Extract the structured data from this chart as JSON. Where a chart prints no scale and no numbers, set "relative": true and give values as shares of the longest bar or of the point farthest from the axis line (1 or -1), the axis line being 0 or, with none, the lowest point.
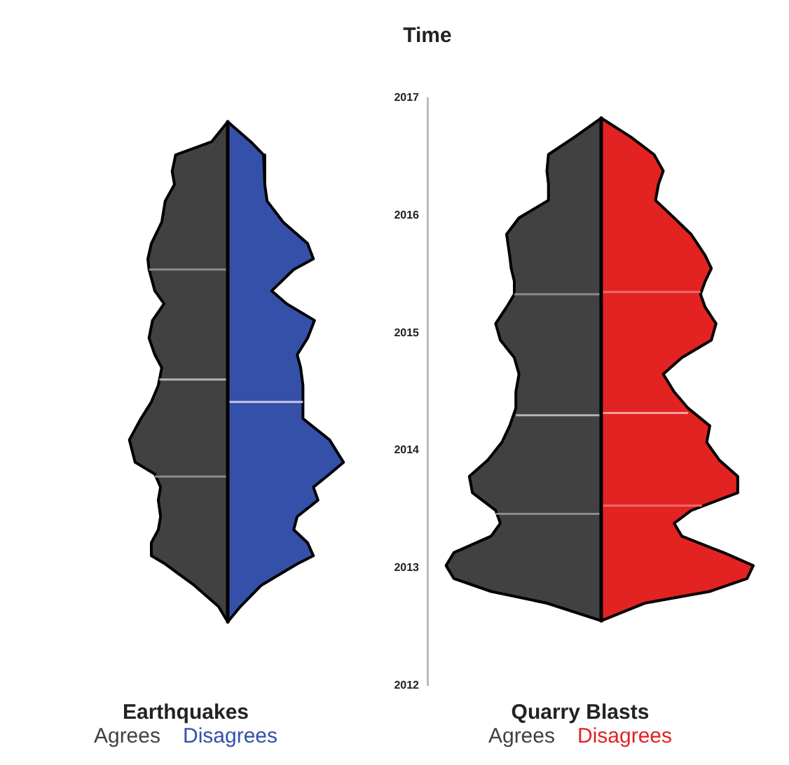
{
  "chart_data": [
    {
      "type": "area",
      "orientation": "horizontal",
      "relative": true,
      "xlabel": "Earthquakes",
      "legend": "bottom",
      "tick_labels": false,
      "ylim": [
        2012,
        2017
      ],
      "yticks": [
        2012,
        2013,
        2014,
        2015,
        2016,
        2017
      ],
      "series": [
        {
          "name": "Agrees",
          "color": "#414141",
          "x": [
            2016.8,
            2016.63,
            2016.52,
            2016.38,
            2016.27,
            2016.13,
            2015.95,
            2015.77,
            2015.64,
            2015.55,
            2015.37,
            2015.26,
            2015.12,
            2014.97,
            2014.83,
            2014.72,
            2014.57,
            2014.43,
            2014.29,
            2014.11,
            2013.92,
            2013.82,
            2013.71,
            2013.6,
            2013.46,
            2013.35,
            2013.24,
            2013.13,
            2013.06,
            2012.88,
            2012.7,
            2012.57
          ],
          "values": [
            0,
            -0.14,
            -0.45,
            -0.48,
            -0.46,
            -0.54,
            -0.57,
            -0.66,
            -0.69,
            -0.68,
            -0.63,
            -0.55,
            -0.65,
            -0.68,
            -0.63,
            -0.57,
            -0.6,
            -0.66,
            -0.75,
            -0.85,
            -0.8,
            -0.63,
            -0.58,
            -0.6,
            -0.58,
            -0.6,
            -0.66,
            -0.66,
            -0.54,
            -0.29,
            -0.08,
            0
          ]
        },
        {
          "name": "Disagrees",
          "color": "#3550a8",
          "x": [
            2016.8,
            2016.63,
            2016.52,
            2016.38,
            2016.27,
            2016.13,
            2015.95,
            2015.77,
            2015.64,
            2015.55,
            2015.37,
            2015.26,
            2015.12,
            2014.97,
            2014.83,
            2014.72,
            2014.57,
            2014.43,
            2014.29,
            2014.11,
            2013.92,
            2013.82,
            2013.71,
            2013.6,
            2013.46,
            2013.35,
            2013.24,
            2013.13,
            2013.06,
            2012.88,
            2012.7,
            2012.57
          ],
          "values": [
            0,
            0.2,
            0.31,
            0.32,
            0.32,
            0.34,
            0.48,
            0.69,
            0.74,
            0.57,
            0.38,
            0.51,
            0.75,
            0.69,
            0.6,
            0.63,
            0.65,
            0.65,
            0.65,
            0.88,
            1,
            0.88,
            0.74,
            0.78,
            0.6,
            0.57,
            0.69,
            0.74,
            0.6,
            0.29,
            0.11,
            0
          ]
        },
        {
          "type": "line",
          "color": "#8c8c8c",
          "x": [
            2015.55,
            2015.55
          ],
          "values": [
            0,
            -0.68
          ]
        },
        {
          "type": "line",
          "color": "#b4b4b4",
          "x": [
            2014.62,
            2014.62
          ],
          "values": [
            0,
            -0.59
          ]
        },
        {
          "type": "line",
          "color": "#8c8c8c",
          "x": [
            2013.8,
            2013.8
          ],
          "values": [
            0,
            -0.63
          ]
        },
        {
          "type": "line",
          "color": "#c8c8e8",
          "x": [
            2014.43,
            2014.43
          ],
          "values": [
            0,
            0.65
          ]
        }
      ]
    },
    {
      "type": "area",
      "orientation": "horizontal",
      "relative": true,
      "xlabel": "Quarry Blasts",
      "ylabel": "Time",
      "legend": "bottom",
      "ylim": [
        2012,
        2017
      ],
      "yticks": [
        2012,
        2013,
        2014,
        2015,
        2016,
        2017
      ],
      "series": [
        {
          "name": "Agrees",
          "color": "#414141",
          "x": [
            2016.83,
            2016.67,
            2016.52,
            2016.38,
            2016.27,
            2016.13,
            2015.98,
            2015.84,
            2015.66,
            2015.55,
            2015.44,
            2015.33,
            2015.22,
            2015.08,
            2014.94,
            2014.79,
            2014.65,
            2014.5,
            2014.36,
            2014.21,
            2014.07,
            2013.92,
            2013.78,
            2013.64,
            2013.49,
            2013.38,
            2013.27,
            2013.13,
            2013.02,
            2012.91,
            2012.8,
            2012.7,
            2012.55
          ],
          "values": [
            0,
            -0.17,
            -0.34,
            -0.35,
            -0.34,
            -0.34,
            -0.53,
            -0.61,
            -0.59,
            -0.58,
            -0.56,
            -0.56,
            -0.61,
            -0.68,
            -0.65,
            -0.56,
            -0.53,
            -0.55,
            -0.55,
            -0.59,
            -0.64,
            -0.73,
            -0.85,
            -0.83,
            -0.68,
            -0.65,
            -0.71,
            -0.95,
            -1,
            -0.95,
            -0.71,
            -0.35,
            0
          ]
        },
        {
          "name": "Disagrees",
          "color": "#e32222",
          "x": [
            2016.83,
            2016.67,
            2016.52,
            2016.38,
            2016.27,
            2016.13,
            2015.98,
            2015.84,
            2015.66,
            2015.55,
            2015.44,
            2015.33,
            2015.22,
            2015.08,
            2014.94,
            2014.79,
            2014.65,
            2014.5,
            2014.36,
            2014.21,
            2014.07,
            2013.92,
            2013.78,
            2013.64,
            2013.49,
            2013.38,
            2013.27,
            2013.13,
            2013.02,
            2012.91,
            2012.8,
            2012.7,
            2012.55
          ],
          "values": [
            0,
            0.19,
            0.34,
            0.4,
            0.37,
            0.35,
            0.47,
            0.58,
            0.67,
            0.71,
            0.67,
            0.64,
            0.67,
            0.74,
            0.71,
            0.52,
            0.4,
            0.47,
            0.56,
            0.7,
            0.68,
            0.76,
            0.88,
            0.88,
            0.58,
            0.47,
            0.52,
            0.79,
            0.98,
            0.94,
            0.7,
            0.28,
            0
          ]
        },
        {
          "type": "line",
          "color": "#8c8c8c",
          "x": [
            2015.33,
            2015.33
          ],
          "values": [
            0,
            -0.56
          ]
        },
        {
          "type": "line",
          "color": "#b4b4b4",
          "x": [
            2014.3,
            2014.3
          ],
          "values": [
            0,
            -0.55
          ]
        },
        {
          "type": "line",
          "color": "#8c8c8c",
          "x": [
            2013.46,
            2013.46
          ],
          "values": [
            0,
            -0.68
          ]
        },
        {
          "type": "line",
          "color": "#f06a6a",
          "x": [
            2015.35,
            2015.35
          ],
          "values": [
            0,
            0.64
          ]
        },
        {
          "type": "line",
          "color": "#f5a0a0",
          "x": [
            2014.32,
            2014.32
          ],
          "values": [
            0,
            0.56
          ]
        },
        {
          "type": "line",
          "color": "#f06a6a",
          "x": [
            2013.53,
            2013.53
          ],
          "values": [
            0,
            0.65
          ]
        }
      ]
    }
  ]
}
